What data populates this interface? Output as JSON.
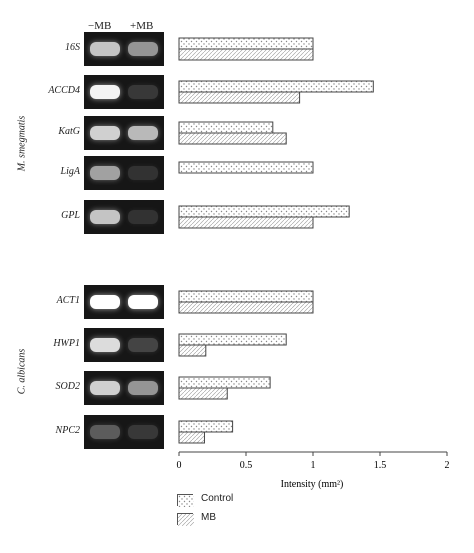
{
  "lane_labels": {
    "minus": "−MB",
    "plus": "+MB"
  },
  "groups": [
    {
      "organism": "M. smegmatis",
      "genes": [
        "16S",
        "ACCD4",
        "KatG",
        "LigA",
        "GPL"
      ]
    },
    {
      "organism": "C. albicans",
      "genes": [
        "ACT1",
        "HWP1",
        "SOD2",
        "NPC2"
      ]
    }
  ],
  "chart_data": {
    "type": "bar",
    "orientation": "horizontal",
    "categories": [
      "16S",
      "ACCD4",
      "KatG",
      "LigA",
      "GPL",
      "ACT1",
      "HWP1",
      "SOD2",
      "NPC2"
    ],
    "series": [
      {
        "name": "Control",
        "pattern": "dots",
        "values": [
          1.0,
          1.45,
          0.7,
          1.0,
          1.27,
          1.0,
          0.8,
          0.68,
          0.4
        ]
      },
      {
        "name": "MB",
        "pattern": "hatch",
        "values": [
          1.0,
          0.9,
          0.8,
          0.0,
          1.0,
          1.0,
          0.2,
          0.36,
          0.19
        ]
      }
    ],
    "xlabel": "Intensity (mm²)",
    "xlim": [
      0,
      2
    ],
    "xticks": [
      "0",
      "0.5",
      "1",
      "1.5",
      "2"
    ],
    "grid": false,
    "legend_position": "bottom-left"
  },
  "gel_intensity": {
    "minus": [
      0.75,
      0.95,
      0.8,
      0.6,
      0.75,
      1.0,
      0.85,
      0.8,
      0.3
    ],
    "plus": [
      0.55,
      0.15,
      0.7,
      0.12,
      0.12,
      1.0,
      0.2,
      0.55,
      0.15
    ]
  },
  "colors": {
    "bar_fill": "#ffffff",
    "bar_stroke": "#444444",
    "pattern": "#888888",
    "gel_bg": "#161616",
    "band": "#ffffff"
  }
}
